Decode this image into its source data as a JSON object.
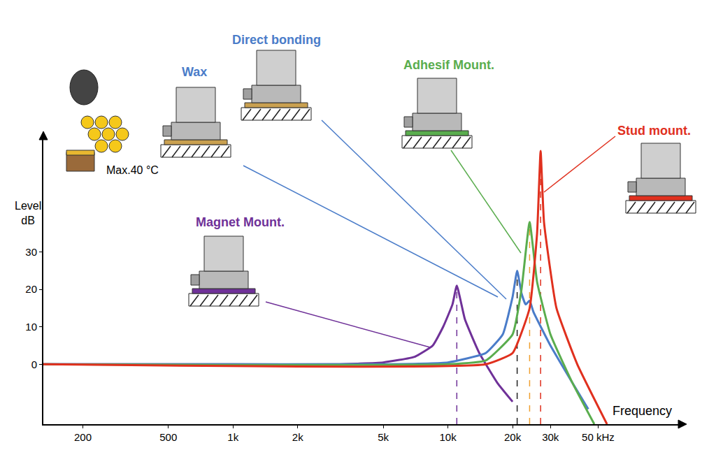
{
  "chart_data": {
    "type": "line",
    "xlabel": "Frequency",
    "ylabel": "Level\ndB",
    "log": "x",
    "grid": false,
    "xlim": [
      131,
      118000
    ],
    "ylim": [
      -16,
      60
    ],
    "xticks": [
      200,
      500,
      {
        "value": 1000,
        "label": "1k"
      },
      {
        "value": 2000,
        "label": "2k"
      },
      {
        "value": 5000,
        "label": "5k"
      },
      {
        "value": 10000,
        "label": "10k"
      },
      {
        "value": 20000,
        "label": "20k"
      },
      {
        "value": 30000,
        "label": "30k"
      },
      {
        "value": 50000,
        "label": "50 kHz"
      }
    ],
    "yticks": [
      0,
      10,
      20,
      30
    ],
    "series": [
      {
        "labels": [
          "Magnet Mount."
        ],
        "color": "#6f3198",
        "x": [
          131,
          1000,
          3000,
          5000,
          7000,
          8500,
          9500,
          10500,
          11000,
          12000,
          14000,
          17000,
          20000
        ],
        "values": [
          0,
          0,
          0,
          0.5,
          2,
          5,
          10,
          16,
          21,
          12,
          3,
          -5,
          -10
        ]
      },
      {
        "labels": [
          "Wax",
          "Direct bonding"
        ],
        "color": "#4a7cc9",
        "x": [
          131,
          5000,
          10000,
          15000,
          18000,
          20000,
          21000,
          22000,
          23000,
          24000,
          25000,
          30000,
          38000,
          45000
        ],
        "values": [
          0,
          0,
          0.5,
          3,
          8,
          18,
          25,
          19,
          16,
          17,
          14,
          5,
          -5,
          -12
        ]
      },
      {
        "labels": [
          "Adhesif Mount."
        ],
        "color": "#5aad4e",
        "x": [
          131,
          10000,
          15000,
          20000,
          22000,
          24000,
          26000,
          30000,
          38000,
          48000
        ],
        "values": [
          0,
          0,
          1,
          8,
          20,
          38,
          22,
          8,
          -5,
          -16
        ]
      },
      {
        "labels": [
          "Stud mount."
        ],
        "color": "#e0301e",
        "x": [
          131,
          15000,
          20000,
          24000,
          26000,
          27000,
          28000,
          32000,
          40000,
          55000
        ],
        "values": [
          0,
          0,
          3,
          15,
          35,
          57,
          38,
          15,
          0,
          -16
        ]
      }
    ],
    "annotations": [
      "Max.40 °C"
    ]
  }
}
